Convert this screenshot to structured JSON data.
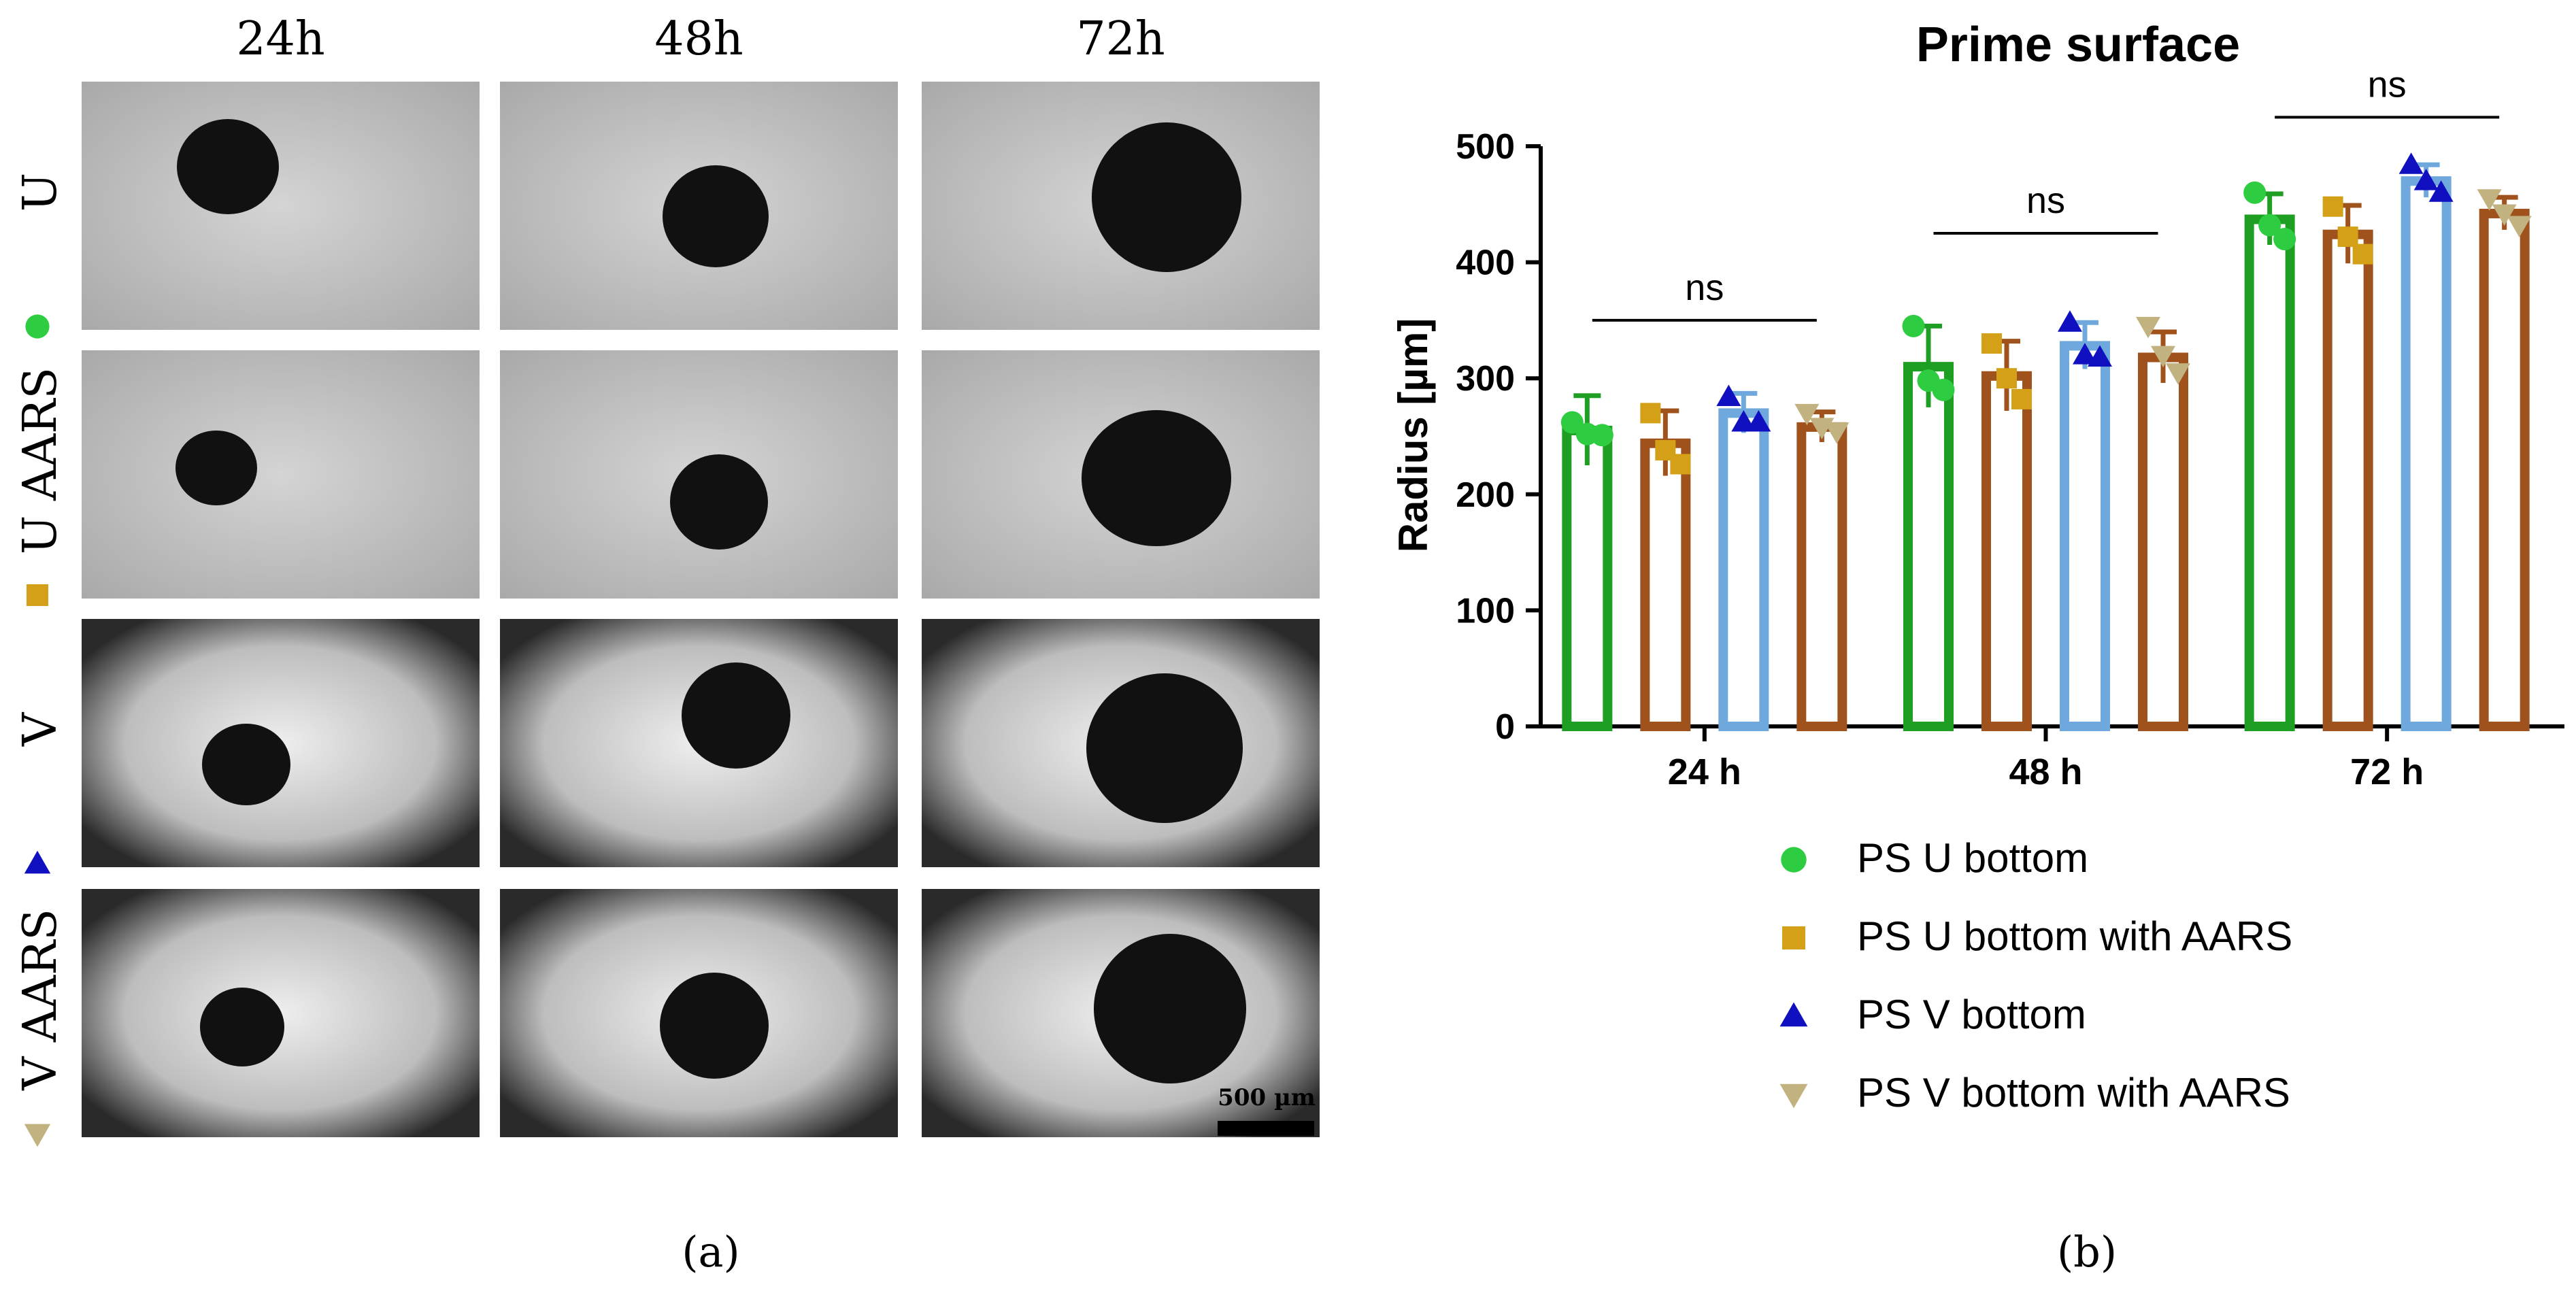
{
  "figure": {
    "panel_a_label": "(a)",
    "panel_b_label": "(b)"
  },
  "micrographs": {
    "columns": [
      "24h",
      "48h",
      "72h"
    ],
    "rows": [
      {
        "label": "U",
        "marker": "circle",
        "color": "#2ecc40"
      },
      {
        "label": "U AARS",
        "marker": "square",
        "color": "#d4a017"
      },
      {
        "label": "V",
        "marker": "triangle-up",
        "color": "#1010c0"
      },
      {
        "label": "V AARS",
        "marker": "triangle-down",
        "color": "#c2b280"
      }
    ],
    "scale_bar_label": "500 µm"
  },
  "chart_data": {
    "type": "bar",
    "title": "Prime surface",
    "xlabel": "",
    "ylabel": "Radius [µm]",
    "ylim": [
      0,
      500
    ],
    "yticks": [
      0,
      100,
      200,
      300,
      400,
      500
    ],
    "categories": [
      "24 h",
      "48 h",
      "72 h"
    ],
    "grid": false,
    "legend_position": "bottom",
    "series": [
      {
        "name": "PS U bottom",
        "marker": "circle",
        "color": "#1f9e24",
        "marker_color": "#2ecc40",
        "values": [
          255,
          310,
          437
        ],
        "errors": [
          30,
          35,
          22
        ],
        "points": [
          [
            262,
            252,
            251
          ],
          [
            345,
            298,
            290
          ],
          [
            460,
            432,
            420
          ]
        ]
      },
      {
        "name": "PS U bottom with AARS",
        "marker": "square",
        "color": "#a0521d",
        "marker_color": "#d4a017",
        "values": [
          244,
          302,
          424
        ],
        "errors": [
          28,
          30,
          25
        ],
        "points": [
          [
            270,
            238,
            226
          ],
          [
            330,
            300,
            282
          ],
          [
            448,
            422,
            407
          ]
        ]
      },
      {
        "name": "PS V bottom",
        "marker": "triangle-up",
        "color": "#6fa8dc",
        "marker_color": "#1010c0",
        "values": [
          270,
          328,
          470
        ],
        "errors": [
          17,
          20,
          14
        ],
        "points": [
          [
            284,
            262,
            262
          ],
          [
            348,
            320,
            318
          ],
          [
            484,
            470,
            460
          ]
        ]
      },
      {
        "name": "PS V bottom with AARS",
        "marker": "triangle-down",
        "color": "#a0521d",
        "marker_color": "#c2b280",
        "values": [
          258,
          318,
          442
        ],
        "errors": [
          13,
          22,
          14
        ],
        "points": [
          [
            270,
            258,
            254
          ],
          [
            345,
            320,
            305
          ],
          [
            455,
            442,
            432
          ]
        ]
      }
    ],
    "annotations": [
      {
        "text": "ns",
        "category": "24 h",
        "y": 350
      },
      {
        "text": "ns",
        "category": "48 h",
        "y": 425
      },
      {
        "text": "ns",
        "category": "72 h",
        "y": 525
      }
    ]
  }
}
